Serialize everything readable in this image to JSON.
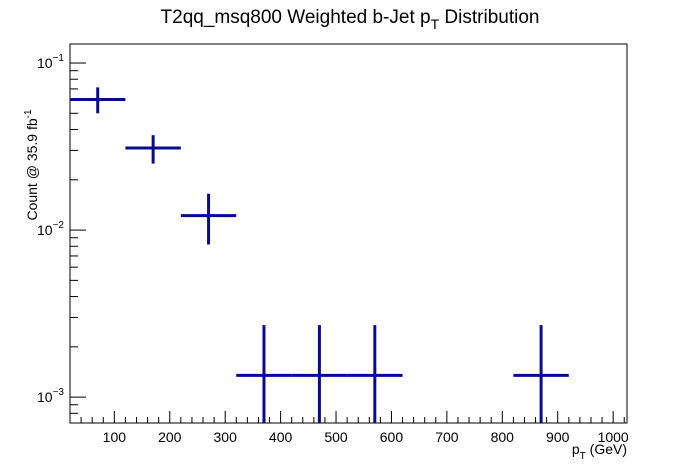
{
  "chart_data": {
    "type": "scatter",
    "title": {
      "main": "T2qq_msq800 Weighted b-Jet p",
      "sub": "T",
      "rest": " Distribution"
    },
    "xlabel": {
      "main": "p",
      "sub": "T",
      "rest": " (GeV)"
    },
    "ylabel": {
      "main": "Count @ 35.9 fb",
      "sup": "-1"
    },
    "x_range": [
      20,
      1025
    ],
    "y_range": [
      0.0007,
      0.13
    ],
    "y_scale": "log",
    "grid": false,
    "x_ticks": [
      100,
      200,
      300,
      400,
      500,
      600,
      700,
      800,
      900,
      1000
    ],
    "x_tick_labels": [
      "100",
      "200",
      "300",
      "400",
      "500",
      "600",
      "700",
      "800",
      "900",
      "1000"
    ],
    "y_ticks": [
      {
        "value": 0.1,
        "base": "10",
        "exp": "−1"
      },
      {
        "value": 0.01,
        "base": "10",
        "exp": "−2"
      },
      {
        "value": 0.001,
        "base": "10",
        "exp": "−3"
      }
    ],
    "color": "#0a0a8c",
    "points": [
      {
        "x": 70,
        "xlo": 20,
        "xhi": 120,
        "y": 0.0605,
        "ylo": 0.05,
        "yhi": 0.0715
      },
      {
        "x": 170,
        "xlo": 120,
        "xhi": 220,
        "y": 0.031,
        "ylo": 0.025,
        "yhi": 0.037
      },
      {
        "x": 270,
        "xlo": 220,
        "xhi": 320,
        "y": 0.0122,
        "ylo": 0.0082,
        "yhi": 0.0165
      },
      {
        "x": 370,
        "xlo": 320,
        "xhi": 420,
        "y": 0.00135,
        "ylo": 0.0007,
        "yhi": 0.0027
      },
      {
        "x": 470,
        "xlo": 420,
        "xhi": 520,
        "y": 0.00135,
        "ylo": 0.0007,
        "yhi": 0.0027
      },
      {
        "x": 570,
        "xlo": 520,
        "xhi": 620,
        "y": 0.00135,
        "ylo": 0.0007,
        "yhi": 0.0027
      },
      {
        "x": 870,
        "xlo": 820,
        "xhi": 920,
        "y": 0.00135,
        "ylo": 0.0007,
        "yhi": 0.0027
      }
    ]
  }
}
